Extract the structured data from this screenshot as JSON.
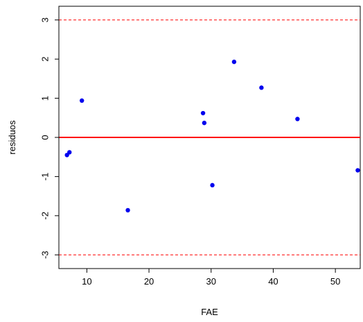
{
  "chart_data": {
    "type": "scatter",
    "title": "",
    "xlabel": "FAE",
    "ylabel": "residuos",
    "xlim": [
      5.5,
      54
    ],
    "ylim": [
      -3.35,
      3.35
    ],
    "x_ticks": [
      10,
      20,
      30,
      40,
      50
    ],
    "y_ticks": [
      -3,
      -2,
      -1,
      0,
      1,
      2,
      3
    ],
    "x_tick_labels": [
      "10",
      "20",
      "30",
      "40",
      "50"
    ],
    "y_tick_labels": [
      "-3",
      "-2",
      "-1",
      "0",
      "1",
      "2",
      "3"
    ],
    "grid": false,
    "legend": "none",
    "points": [
      {
        "x": 6.8,
        "y": -0.45
      },
      {
        "x": 7.2,
        "y": -0.38
      },
      {
        "x": 9.2,
        "y": 0.94
      },
      {
        "x": 16.6,
        "y": -1.86
      },
      {
        "x": 28.7,
        "y": 0.62
      },
      {
        "x": 28.9,
        "y": 0.37
      },
      {
        "x": 30.2,
        "y": -1.22
      },
      {
        "x": 33.7,
        "y": 1.93
      },
      {
        "x": 38.1,
        "y": 1.27
      },
      {
        "x": 43.9,
        "y": 0.47
      },
      {
        "x": 53.6,
        "y": -0.84
      }
    ],
    "reference_lines": [
      {
        "y": 0,
        "style": "solid",
        "color": "#ff0000"
      },
      {
        "y": 3,
        "style": "dashed",
        "color": "#ff0000"
      },
      {
        "y": -3,
        "style": "dashed",
        "color": "#ff0000"
      }
    ],
    "colors": {
      "points": "#0000ee",
      "axis": "#000000"
    }
  }
}
